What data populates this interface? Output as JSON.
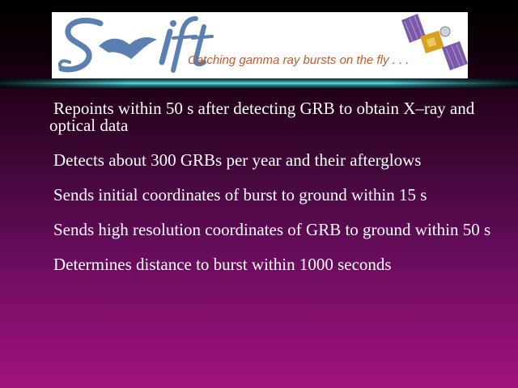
{
  "banner": {
    "logo_text": "Swift",
    "tagline": "Catching gamma ray bursts on the fly . . ."
  },
  "bullets": [
    "Repoints within 50 s after detecting GRB to obtain X–ray and optical data",
    "Detects about 300 GRBs per year and their afterglows",
    "Sends initial coordinates of burst to ground within 15 s",
    "Sends high resolution coordinates of GRB to ground within 50 s",
    "Determines distance to burst within 1000 seconds"
  ],
  "colors": {
    "logo_blue": "#5a7fb0",
    "tagline_orange": "#c8582a",
    "text": "#ffffff"
  }
}
